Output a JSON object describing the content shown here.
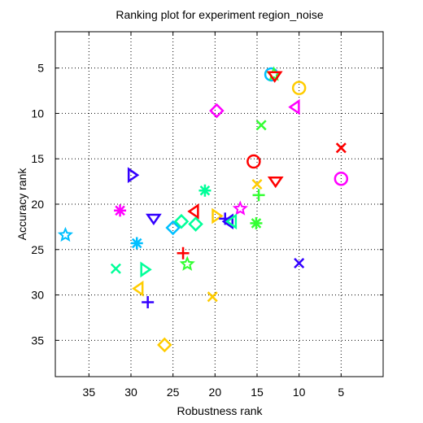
{
  "chart_data": {
    "type": "scatter",
    "title": "Ranking plot for experiment region_noise",
    "xlabel": "Robustness rank",
    "ylabel": "Accuracy rank",
    "xlim": [
      39,
      0
    ],
    "ylim": [
      39,
      1
    ],
    "x_reversed": true,
    "y_reversed": true,
    "xticks": [
      35,
      30,
      25,
      20,
      15,
      10,
      5
    ],
    "yticks": [
      5,
      10,
      15,
      20,
      25,
      30,
      35
    ],
    "grid": true,
    "legend": "none",
    "points": [
      {
        "x": 13.3,
        "y": 5.7,
        "marker": "circle",
        "color": "#00bfff"
      },
      {
        "x": 13.0,
        "y": 5.7,
        "marker": "star",
        "color": "#33ff33"
      },
      {
        "x": 12.9,
        "y": 5.9,
        "marker": "triangle-down",
        "color": "#ff0000"
      },
      {
        "x": 10.0,
        "y": 7.2,
        "marker": "circle",
        "color": "#ffcc00"
      },
      {
        "x": 10.5,
        "y": 9.3,
        "marker": "triangle-left",
        "color": "#ff00ff"
      },
      {
        "x": 19.8,
        "y": 9.7,
        "marker": "diamond",
        "color": "#ff00ff"
      },
      {
        "x": 14.5,
        "y": 11.3,
        "marker": "x",
        "color": "#33ff33"
      },
      {
        "x": 5.0,
        "y": 13.8,
        "marker": "x",
        "color": "#ff0000"
      },
      {
        "x": 15.4,
        "y": 15.3,
        "marker": "circle",
        "color": "#ff0000"
      },
      {
        "x": 29.8,
        "y": 16.8,
        "marker": "triangle-right",
        "color": "#3300ff"
      },
      {
        "x": 5.0,
        "y": 17.2,
        "marker": "circle",
        "color": "#ff00ff"
      },
      {
        "x": 15.0,
        "y": 17.8,
        "marker": "x",
        "color": "#ffcc00"
      },
      {
        "x": 12.8,
        "y": 17.5,
        "marker": "triangle-down",
        "color": "#ff0000"
      },
      {
        "x": 21.2,
        "y": 18.5,
        "marker": "asterisk",
        "color": "#00ff99"
      },
      {
        "x": 14.8,
        "y": 19.0,
        "marker": "plus",
        "color": "#33ff33"
      },
      {
        "x": 31.3,
        "y": 20.7,
        "marker": "asterisk",
        "color": "#ff00ff"
      },
      {
        "x": 22.5,
        "y": 20.8,
        "marker": "triangle-left",
        "color": "#ff0000"
      },
      {
        "x": 27.3,
        "y": 21.6,
        "marker": "triangle-down",
        "color": "#3300ff"
      },
      {
        "x": 19.8,
        "y": 21.3,
        "marker": "triangle-right",
        "color": "#ffcc00"
      },
      {
        "x": 18.8,
        "y": 21.6,
        "marker": "plus",
        "color": "#3300ff"
      },
      {
        "x": 17.0,
        "y": 20.5,
        "marker": "star",
        "color": "#ff00ff"
      },
      {
        "x": 15.1,
        "y": 22.1,
        "marker": "asterisk",
        "color": "#33ff33"
      },
      {
        "x": 24.0,
        "y": 21.9,
        "marker": "diamond",
        "color": "#00ff99"
      },
      {
        "x": 22.3,
        "y": 22.2,
        "marker": "diamond",
        "color": "#00ff99"
      },
      {
        "x": 25.0,
        "y": 22.6,
        "marker": "diamond",
        "color": "#00bfff"
      },
      {
        "x": 18.4,
        "y": 21.9,
        "marker": "triangle-left",
        "color": "#3300ff"
      },
      {
        "x": 18.0,
        "y": 21.9,
        "marker": "triangle-left",
        "color": "#00ff99"
      },
      {
        "x": 37.8,
        "y": 23.4,
        "marker": "star",
        "color": "#00bfff"
      },
      {
        "x": 29.3,
        "y": 24.3,
        "marker": "asterisk",
        "color": "#00bfff"
      },
      {
        "x": 23.8,
        "y": 25.4,
        "marker": "plus",
        "color": "#ff0000"
      },
      {
        "x": 23.3,
        "y": 26.6,
        "marker": "star",
        "color": "#33ff33"
      },
      {
        "x": 10.0,
        "y": 26.5,
        "marker": "x",
        "color": "#3300ff"
      },
      {
        "x": 31.8,
        "y": 27.1,
        "marker": "x",
        "color": "#00ff99"
      },
      {
        "x": 28.3,
        "y": 27.2,
        "marker": "triangle-right",
        "color": "#00ff99"
      },
      {
        "x": 29.1,
        "y": 29.3,
        "marker": "triangle-left",
        "color": "#ffcc00"
      },
      {
        "x": 28.0,
        "y": 30.8,
        "marker": "plus",
        "color": "#3300ff"
      },
      {
        "x": 20.3,
        "y": 30.2,
        "marker": "x",
        "color": "#ffcc00"
      },
      {
        "x": 26.0,
        "y": 35.5,
        "marker": "diamond",
        "color": "#ffcc00"
      }
    ]
  }
}
